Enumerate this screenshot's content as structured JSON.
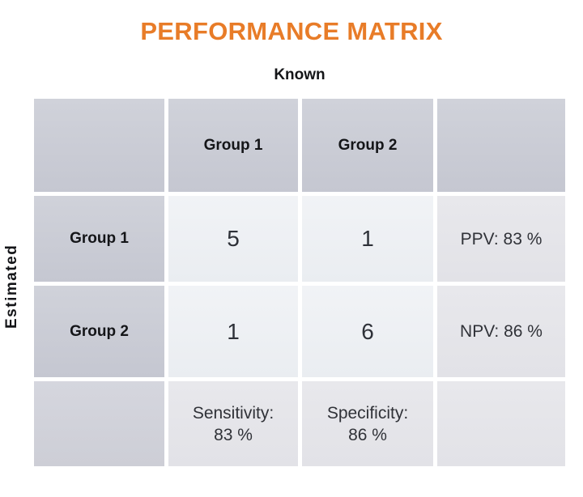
{
  "title": "PERFORMANCE MATRIX",
  "axes": {
    "top": "Known",
    "left": "Estimated"
  },
  "matrix": {
    "col_headers": [
      "Group 1",
      "Group 2"
    ],
    "row_headers": [
      "Group 1",
      "Group 2"
    ],
    "values": [
      [
        "5",
        "1"
      ],
      [
        "1",
        "6"
      ]
    ],
    "row_metrics": [
      "PPV: 83 %",
      "NPV: 86 %"
    ],
    "col_metrics": [
      [
        "Sensitivity:",
        "83 %"
      ],
      [
        "Specificity:",
        "86 %"
      ]
    ]
  },
  "colors": {
    "title_orange": "#e87c28",
    "header_cell": "#c9cbd4",
    "data_cell": "#eef0f3",
    "metric_cell": "#e5e5e9",
    "text_dark": "#17181c",
    "background": "#ffffff"
  },
  "chart_data": {
    "type": "table",
    "title": "PERFORMANCE MATRIX",
    "xlabel": "Known",
    "ylabel": "Estimated",
    "categories": [
      "Group 1",
      "Group 2"
    ],
    "matrix": [
      [
        5,
        1
      ],
      [
        1,
        6
      ]
    ],
    "metrics": {
      "ppv_pct": 83,
      "npv_pct": 86,
      "sensitivity_pct": 83,
      "specificity_pct": 86
    },
    "layout": "confusion-matrix with column headers = known class, row headers = estimated class, right column = predictive values, bottom row = sensitivity/specificity"
  }
}
